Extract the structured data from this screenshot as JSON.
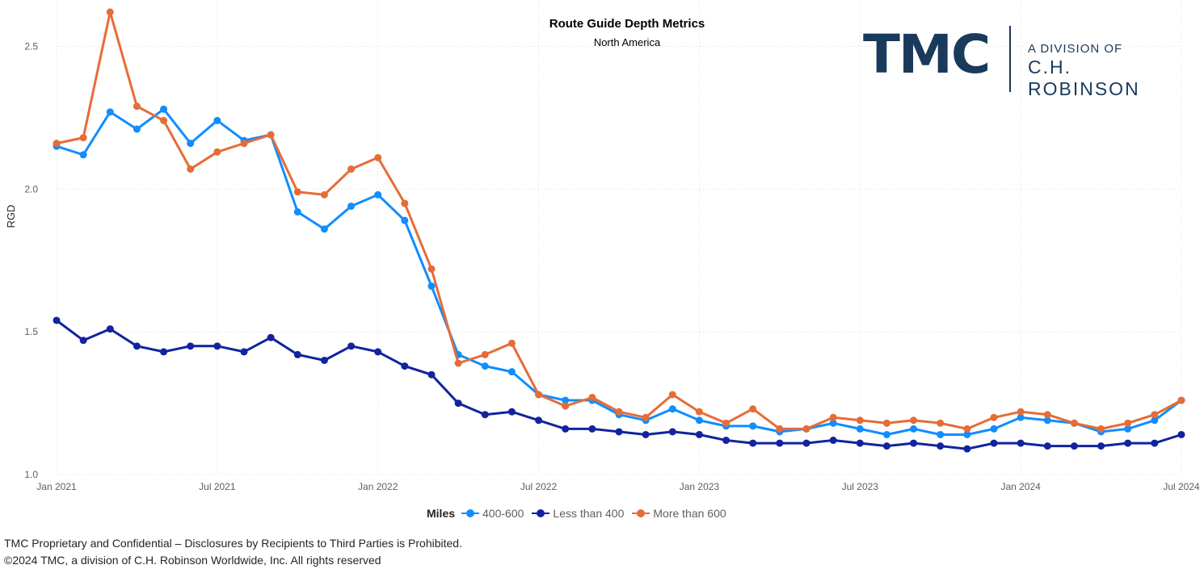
{
  "header": {
    "title": "Route Guide Depth Metrics",
    "subtitle": "North America"
  },
  "logo": {
    "brand": "TMC",
    "line1": "A DIVISION OF",
    "line2": "C.H. ROBINSON"
  },
  "footer": {
    "line1": "TMC Proprietary and Confidential – Disclosures by Recipients to Third Parties is Prohibited.",
    "line2": "©2024 TMC, a division of C.H. Robinson Worldwide, Inc. All rights reserved"
  },
  "legend": {
    "title": "Miles"
  },
  "chart_data": {
    "type": "line",
    "title": "Route Guide Depth Metrics",
    "subtitle": "North America",
    "xlabel": "",
    "ylabel": "RGD",
    "ylim": [
      1.0,
      2.6
    ],
    "yticks": [
      "1.0",
      "1.5",
      "2.0",
      "2.5"
    ],
    "grid": true,
    "legend_position": "bottom-center",
    "xtick_labels": [
      "Jan 2021",
      "Jul 2021",
      "Jan 2022",
      "Jul 2022",
      "Jan 2023",
      "Jul 2023",
      "Jan 2024",
      "Jul 2024"
    ],
    "x": [
      "2021-01",
      "2021-02",
      "2021-03",
      "2021-04",
      "2021-05",
      "2021-06",
      "2021-07",
      "2021-08",
      "2021-09",
      "2021-10",
      "2021-11",
      "2021-12",
      "2022-01",
      "2022-02",
      "2022-03",
      "2022-04",
      "2022-05",
      "2022-06",
      "2022-07",
      "2022-08",
      "2022-09",
      "2022-10",
      "2022-11",
      "2022-12",
      "2023-01",
      "2023-02",
      "2023-03",
      "2023-04",
      "2023-05",
      "2023-06",
      "2023-07",
      "2023-08",
      "2023-09",
      "2023-10",
      "2023-11",
      "2023-12",
      "2024-01",
      "2024-02",
      "2024-03",
      "2024-04",
      "2024-05",
      "2024-06",
      "2024-07"
    ],
    "series": [
      {
        "name": "400-600",
        "color": "#118dff",
        "values": [
          2.15,
          2.12,
          2.27,
          2.21,
          2.28,
          2.16,
          2.24,
          2.17,
          2.19,
          1.92,
          1.86,
          1.94,
          1.98,
          1.89,
          1.66,
          1.42,
          1.38,
          1.36,
          1.28,
          1.26,
          1.26,
          1.21,
          1.19,
          1.23,
          1.19,
          1.17,
          1.17,
          1.15,
          1.16,
          1.18,
          1.16,
          1.14,
          1.16,
          1.14,
          1.14,
          1.16,
          1.2,
          1.19,
          1.18,
          1.15,
          1.16,
          1.19,
          1.26
        ]
      },
      {
        "name": "Less than 400",
        "color": "#12239e",
        "values": [
          1.54,
          1.47,
          1.51,
          1.45,
          1.43,
          1.45,
          1.45,
          1.43,
          1.48,
          1.42,
          1.4,
          1.45,
          1.43,
          1.38,
          1.35,
          1.25,
          1.21,
          1.22,
          1.19,
          1.16,
          1.16,
          1.15,
          1.14,
          1.15,
          1.14,
          1.12,
          1.11,
          1.11,
          1.11,
          1.12,
          1.11,
          1.1,
          1.11,
          1.1,
          1.09,
          1.11,
          1.11,
          1.1,
          1.1,
          1.1,
          1.11,
          1.11,
          1.14
        ]
      },
      {
        "name": "More than 600",
        "color": "#e66c37",
        "values": [
          2.16,
          2.18,
          2.62,
          2.29,
          2.24,
          2.07,
          2.13,
          2.16,
          2.19,
          1.99,
          1.98,
          2.07,
          2.11,
          1.95,
          1.72,
          1.39,
          1.42,
          1.46,
          1.28,
          1.24,
          1.27,
          1.22,
          1.2,
          1.28,
          1.22,
          1.18,
          1.23,
          1.16,
          1.16,
          1.2,
          1.19,
          1.18,
          1.19,
          1.18,
          1.16,
          1.2,
          1.22,
          1.21,
          1.18,
          1.16,
          1.18,
          1.21,
          1.26
        ]
      }
    ]
  }
}
